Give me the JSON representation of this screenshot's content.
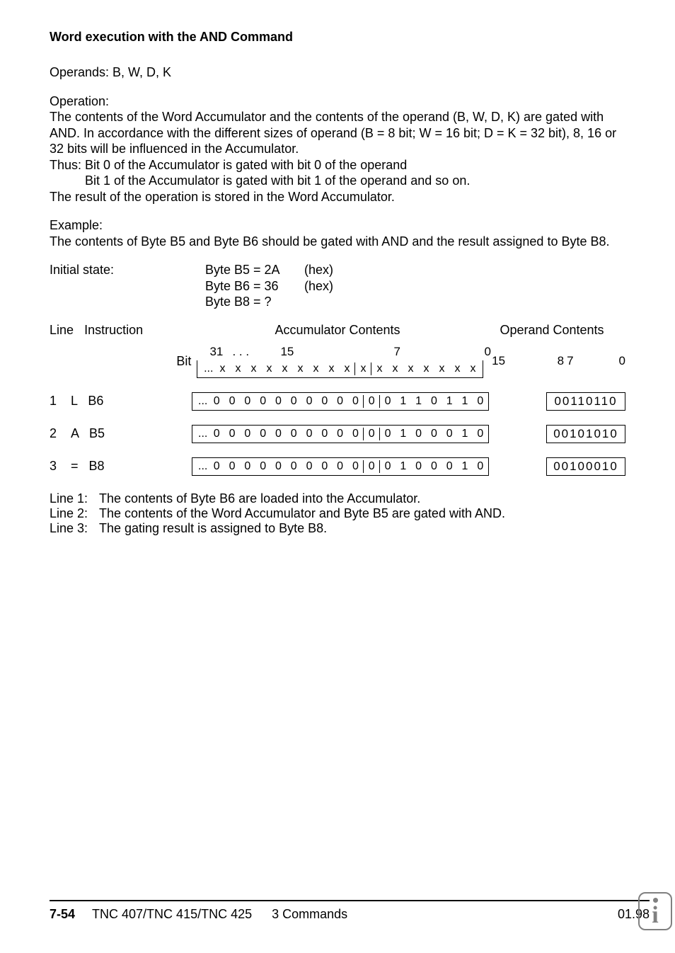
{
  "title": "Word execution with the AND Command",
  "operands_line": "Operands: B, W, D, K",
  "operation_heading": "Operation:",
  "operation_p1": "The contents of the Word Accumulator and the contents of the operand (B, W, D, K) are gated with AND. In accordance with the different sizes of operand (B = 8 bit; W = 16 bit; D = K = 32 bit), 8, 16 or 32 bits will be influenced in the Accumulator.",
  "thus_label": "Thus:",
  "thus_line1": "Bit 0 of the Accumulator is gated with bit 0 of the operand",
  "thus_line2": "Bit 1 of the Accumulator is gated with bit 1 of the operand and so on.",
  "operation_p2": "The result of the operation is stored in the Word Accumulator.",
  "example_heading": "Example:",
  "example_text": "The contents of Byte B5 and Byte B6 should be gated with AND and the result assigned to Byte B8.",
  "initial_state_label": "Initial state:",
  "initial_b5": "Byte B5 = 2A",
  "initial_b5_hex": "(hex)",
  "initial_b6": "Byte B6 = 36",
  "initial_b6_hex": "(hex)",
  "initial_b8": "Byte B8 = ?",
  "col_line": "Line",
  "col_instruction": "Instruction",
  "col_accum": "Accumulator Contents",
  "col_operand": "Operand Contents",
  "bit_label": "Bit",
  "bit_n_31": "31",
  "bit_n_dots": ".   .   .",
  "bit_n_15": "15",
  "bit_n_7": "7",
  "bit_n_0": "0",
  "op_n_15": "15",
  "op_n_8": "8",
  "op_n_7": "7",
  "op_n_0": "0",
  "acc_prefix": "...",
  "acc_header_bits": [
    "x",
    "x",
    "x",
    "x",
    "x",
    "x",
    "x",
    "x",
    "x",
    "x",
    "x",
    "x",
    "x",
    "x",
    "x",
    "x",
    "x"
  ],
  "rows": [
    {
      "line": "1",
      "instr": "L   B6",
      "acc": [
        "0",
        "0",
        "0",
        "0",
        "0",
        "0",
        "0",
        "0",
        "0",
        "0",
        "0",
        "0",
        "1",
        "1",
        "0",
        "1",
        "1",
        "0"
      ],
      "op": "00110110"
    },
    {
      "line": "2",
      "instr": "A   B5",
      "acc": [
        "0",
        "0",
        "0",
        "0",
        "0",
        "0",
        "0",
        "0",
        "0",
        "0",
        "0",
        "0",
        "1",
        "0",
        "0",
        "0",
        "1",
        "0"
      ],
      "op": "00101010"
    },
    {
      "line": "3",
      "instr": "=   B8",
      "acc": [
        "0",
        "0",
        "0",
        "0",
        "0",
        "0",
        "0",
        "0",
        "0",
        "0",
        "0",
        "0",
        "1",
        "0",
        "0",
        "0",
        "1",
        "0"
      ],
      "op": "00100010"
    }
  ],
  "note1_label": "Line 1:",
  "note1_text": "The contents of Byte B6 are loaded into the Accumulator.",
  "note2_label": "Line 2:",
  "note2_text": "The contents of the Word Accumulator and Byte B5 are gated with AND.",
  "note3_label": "Line 3:",
  "note3_text": "The gating result is assigned to Byte B8.",
  "footer_page": "7-54",
  "footer_model": "TNC 407/TNC 415/TNC 425",
  "footer_section": "3  Commands",
  "footer_date": "01.98"
}
